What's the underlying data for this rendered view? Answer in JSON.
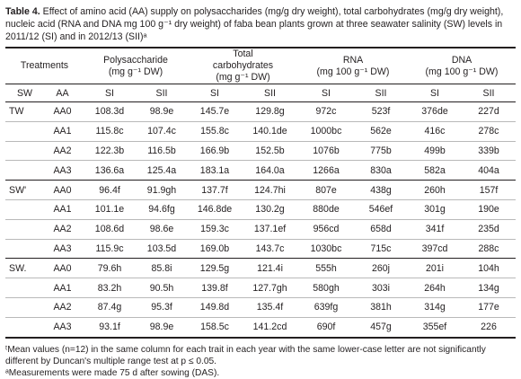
{
  "caption": {
    "lead": "Table 4.",
    "text": "Effect of amino acid (AA) supply on polysaccharides (mg/g dry weight), total carbohydrates (mg/g dry weight), nucleic acid (RNA and DNA mg 100 g⁻¹ dry weight) of faba bean plants grown at three seawater salinity (SW) levels in 2011/12 (SI) and in 2012/13 (SII)ᵃ"
  },
  "header": {
    "treatments": "Treatments",
    "polysaccharide": [
      "Polysaccharide",
      "(mg g⁻¹ DW)"
    ],
    "total_carbohydrates": [
      "Total",
      "carbohydrates",
      "(mg g⁻¹ DW)"
    ],
    "rna": [
      "RNA",
      "(mg 100 g⁻¹ DW)"
    ],
    "dna": [
      "DNA",
      "(mg 100 g⁻¹ DW)"
    ],
    "sub": [
      "SW",
      "AA",
      "SI",
      "SII",
      "SI",
      "SII",
      "SI",
      "SII",
      "SI",
      "SII"
    ]
  },
  "groups": [
    {
      "sw": "TW",
      "rows": [
        [
          "AA0",
          "108.3d",
          "98.9e",
          "145.7e",
          "129.8g",
          "972c",
          "523f",
          "376de",
          "227d"
        ],
        [
          "AA1",
          "115.8c",
          "107.4c",
          "155.8c",
          "140.1de",
          "1000bc",
          "562e",
          "416c",
          "278c"
        ],
        [
          "AA2",
          "122.3b",
          "116.5b",
          "166.9b",
          "152.5b",
          "1076b",
          "775b",
          "499b",
          "339b"
        ],
        [
          "AA3",
          "136.6a",
          "125.4a",
          "183.1a",
          "164.0a",
          "1266a",
          "830a",
          "582a",
          "404a"
        ]
      ]
    },
    {
      "sw": "SW'",
      "rows": [
        [
          "AA0",
          "96.4f",
          "91.9gh",
          "137.7f",
          "124.7hi",
          "807e",
          "438g",
          "260h",
          "157f"
        ],
        [
          "AA1",
          "101.1e",
          "94.6fg",
          "146.8de",
          "130.2g",
          "880de",
          "546ef",
          "301g",
          "190e"
        ],
        [
          "AA2",
          "108.6d",
          "98.6e",
          "159.3c",
          "137.1ef",
          "956cd",
          "658d",
          "341f",
          "235d"
        ],
        [
          "AA3",
          "115.9c",
          "103.5d",
          "169.0b",
          "143.7c",
          "1030bc",
          "715c",
          "397cd",
          "288c"
        ]
      ]
    },
    {
      "sw": "SW.",
      "rows": [
        [
          "AA0",
          "79.6h",
          "85.8i",
          "129.5g",
          "121.4i",
          "555h",
          "260j",
          "201i",
          "104h"
        ],
        [
          "AA1",
          "83.2h",
          "90.5h",
          "139.8f",
          "127.7gh",
          "580gh",
          "303i",
          "264h",
          "134g"
        ],
        [
          "AA2",
          "87.4g",
          "95.3f",
          "149.8d",
          "135.4f",
          "639fg",
          "381h",
          "314g",
          "177e"
        ],
        [
          "AA3",
          "93.1f",
          "98.9e",
          "158.5c",
          "141.2cd",
          "690f",
          "457g",
          "355ef",
          "226"
        ]
      ]
    }
  ],
  "footnotes": [
    "ᵗMean values (n=12) in the same column for each trait in each year with the same lower-case letter are not significantly different by Duncan's multiple range test at p ≤ 0.05.",
    "ᵃMeasurements were made 75 d after sowing (DAS)."
  ]
}
